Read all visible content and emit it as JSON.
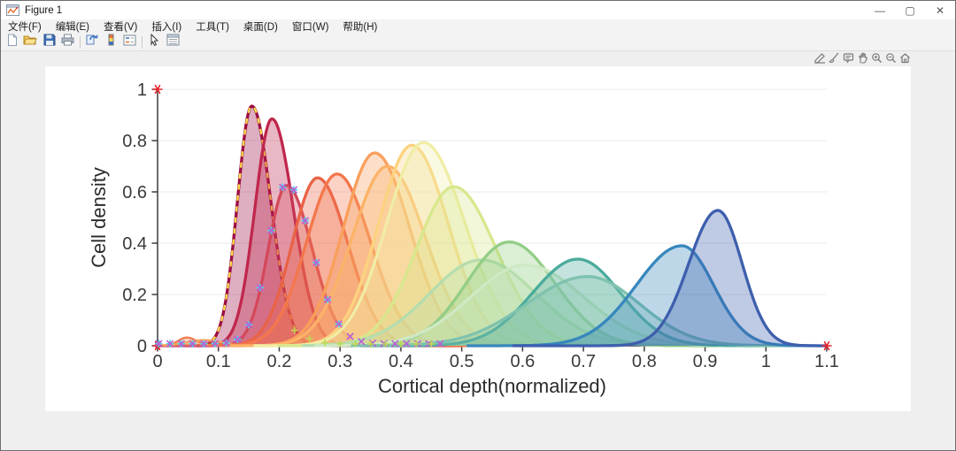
{
  "window": {
    "title": "Figure 1",
    "controls": {
      "minimize": "—",
      "maximize": "▢",
      "close": "✕"
    }
  },
  "menu_bar": {
    "items": [
      {
        "label": "文件(F)"
      },
      {
        "label": "编辑(E)"
      },
      {
        "label": "查看(V)"
      },
      {
        "label": "插入(I)"
      },
      {
        "label": "工具(T)"
      },
      {
        "label": "桌面(D)"
      },
      {
        "label": "窗口(W)"
      },
      {
        "label": "帮助(H)"
      }
    ]
  },
  "toolbar": {
    "buttons": [
      {
        "name": "new-figure-button",
        "icon": "new-document-icon"
      },
      {
        "name": "open-file-button",
        "icon": "open-folder-icon"
      },
      {
        "name": "save-figure-button",
        "icon": "save-floppy-icon"
      },
      {
        "name": "print-figure-button",
        "icon": "printer-icon"
      },
      {
        "name": "separator"
      },
      {
        "name": "link-plot-button",
        "icon": "link-plot-icon"
      },
      {
        "name": "insert-colorbar-button",
        "icon": "colorbar-icon"
      },
      {
        "name": "insert-legend-button",
        "icon": "legend-icon"
      },
      {
        "name": "separator"
      },
      {
        "name": "edit-plot-button",
        "icon": "cursor-arrow-icon"
      },
      {
        "name": "property-inspector-button",
        "icon": "property-inspector-icon"
      }
    ]
  },
  "axes_toolbar": {
    "buttons": [
      {
        "name": "export-button",
        "icon": "export-icon"
      },
      {
        "name": "brush-data-button",
        "icon": "brush-icon"
      },
      {
        "name": "datatips-button",
        "icon": "datatip-icon"
      },
      {
        "name": "pan-button",
        "icon": "pan-hand-icon"
      },
      {
        "name": "zoom-in-button",
        "icon": "zoom-in-icon"
      },
      {
        "name": "zoom-out-button",
        "icon": "zoom-out-icon"
      },
      {
        "name": "restore-view-button",
        "icon": "home-icon"
      }
    ]
  },
  "chart_data": {
    "type": "area",
    "title": "",
    "xlabel": "Cortical depth(normalized)",
    "ylabel": "Cell density",
    "xlim": [
      0,
      1.1
    ],
    "ylim": [
      0,
      1
    ],
    "xticks": [
      "0",
      "0.1",
      "0.2",
      "0.3",
      "0.4",
      "0.5",
      "0.6",
      "0.7",
      "0.8",
      "0.9",
      "1",
      "1.1"
    ],
    "xtick_values": [
      0,
      0.1,
      0.2,
      0.3,
      0.4,
      0.5,
      0.6,
      0.7,
      0.8,
      0.9,
      1,
      1.1
    ],
    "yticks": [
      "0",
      "0.2",
      "0.4",
      "0.6",
      "0.8",
      "1"
    ],
    "ytick_values": [
      0,
      0.2,
      0.4,
      0.6,
      0.8,
      1
    ],
    "grid": "horizontal",
    "legend": "none",
    "series_note": "overlapping kernel-density curves, spectral colormap, gaussian shape: peak at mu, asymmetric sigmas, drawn in list order",
    "series": [
      {
        "name": "maroon",
        "color": "#9c0d43",
        "mu": 0.155,
        "sigma_left": 0.0235,
        "sigma_right": 0.031,
        "peak": 0.935,
        "x_range": [
          0.055,
          0.32
        ],
        "overlay_dash_color": "#ffe14a"
      },
      {
        "name": "crimson",
        "color": "#c0274d",
        "mu": 0.188,
        "sigma_left": 0.028,
        "sigma_right": 0.035,
        "peak": 0.885,
        "x_range": [
          0.065,
          0.37
        ]
      },
      {
        "name": "rose",
        "color": "#d4485a",
        "mu": 0.212,
        "sigma_left": 0.03,
        "sigma_right": 0.042,
        "peak": 0.625,
        "x_range": [
          0.0,
          0.5
        ]
      },
      {
        "name": "bump-a",
        "color": "#ef7e4e",
        "mu": 0.048,
        "sigma_left": 0.014,
        "sigma_right": 0.016,
        "peak": 0.032,
        "x_range": [
          0.005,
          0.1
        ],
        "thin": true
      },
      {
        "name": "bump-b",
        "color": "#f9a45c",
        "mu": 0.075,
        "sigma_left": 0.028,
        "sigma_right": 0.03,
        "peak": 0.022,
        "x_range": [
          0.005,
          0.16
        ],
        "thin": true
      },
      {
        "name": "orange-red",
        "color": "#e96346",
        "mu": 0.263,
        "sigma_left": 0.042,
        "sigma_right": 0.05,
        "peak": 0.655,
        "x_range": [
          0.09,
          0.5
        ]
      },
      {
        "name": "orange",
        "color": "#f4774c",
        "mu": 0.295,
        "sigma_left": 0.05,
        "sigma_right": 0.055,
        "peak": 0.67,
        "x_range": [
          0.09,
          0.52
        ]
      },
      {
        "name": "light-orange",
        "color": "#f99f5b",
        "mu": 0.357,
        "sigma_left": 0.052,
        "sigma_right": 0.058,
        "peak": 0.752,
        "x_range": [
          0.12,
          0.6
        ]
      },
      {
        "name": "peach",
        "color": "#fcb268",
        "mu": 0.378,
        "sigma_left": 0.058,
        "sigma_right": 0.062,
        "peak": 0.7,
        "x_range": [
          0.12,
          0.62
        ]
      },
      {
        "name": "straw",
        "color": "#fdd27f",
        "mu": 0.418,
        "sigma_left": 0.055,
        "sigma_right": 0.06,
        "peak": 0.782,
        "x_range": [
          0.16,
          0.66
        ]
      },
      {
        "name": "pale-yellow",
        "color": "#f0eda6",
        "mu": 0.437,
        "sigma_left": 0.06,
        "sigma_right": 0.068,
        "peak": 0.793,
        "x_range": [
          0.16,
          0.7
        ]
      },
      {
        "name": "yellow-green",
        "color": "#d8e78d",
        "mu": 0.487,
        "sigma_left": 0.062,
        "sigma_right": 0.07,
        "peak": 0.62,
        "x_range": [
          0.2,
          0.76
        ]
      },
      {
        "name": "pale-green-wide",
        "color": "#b5ddae",
        "mu": 0.532,
        "sigma_left": 0.085,
        "sigma_right": 0.09,
        "peak": 0.335,
        "x_range": [
          0.24,
          0.92
        ]
      },
      {
        "name": "light-green",
        "color": "#93cd86",
        "mu": 0.578,
        "sigma_left": 0.07,
        "sigma_right": 0.075,
        "peak": 0.405,
        "x_range": [
          0.3,
          0.92
        ]
      },
      {
        "name": "mint",
        "color": "#cfe9c4",
        "mu": 0.605,
        "sigma_left": 0.09,
        "sigma_right": 0.095,
        "peak": 0.315,
        "x_range": [
          0.26,
          0.97
        ]
      },
      {
        "name": "teal",
        "color": "#4bab9d",
        "mu": 0.691,
        "sigma_left": 0.075,
        "sigma_right": 0.07,
        "peak": 0.338,
        "x_range": [
          0.34,
          1.02
        ]
      },
      {
        "name": "light-teal",
        "color": "#7fc2ae",
        "mu": 0.707,
        "sigma_left": 0.1,
        "sigma_right": 0.085,
        "peak": 0.27,
        "x_range": [
          0.32,
          1.04
        ]
      },
      {
        "name": "steel-blue",
        "color": "#3787bd",
        "mu": 0.862,
        "sigma_left": 0.075,
        "sigma_right": 0.052,
        "peak": 0.39,
        "x_range": [
          0.51,
          1.09
        ]
      },
      {
        "name": "dark-blue",
        "color": "#3d5fad",
        "mu": 0.921,
        "sigma_left": 0.048,
        "sigma_right": 0.04,
        "peak": 0.528,
        "x_range": [
          0.585,
          1.097
        ]
      }
    ],
    "marker_series": [
      {
        "name": "endpoint-asterisks",
        "glyph": "asterisk",
        "color": "#e8232a",
        "size": 5,
        "points": [
          [
            0,
            1
          ],
          [
            0,
            0
          ],
          [
            1.1,
            0
          ]
        ]
      },
      {
        "name": "origin-dot",
        "glyph": "dot",
        "color": "#e8232a",
        "size": 3.2,
        "points": [
          [
            0,
            0
          ]
        ]
      },
      {
        "name": "rose-cyan-plus",
        "glyph": "plus",
        "color": "#4fd2e6",
        "size": 3.6,
        "on_series": "rose",
        "x_start": 0.002,
        "x_end": 0.3,
        "x_step": 0.0185,
        "y_offset": 0.008
      },
      {
        "name": "rose-magenta-x",
        "glyph": "x",
        "color": "#bb5cd6",
        "size": 3.2,
        "on_series": "rose",
        "x_start": 0.002,
        "x_end": 0.47,
        "x_step": 0.0185,
        "y_offset": 0.008
      },
      {
        "name": "tail-lime-plus",
        "glyph": "plus",
        "color": "#bfd84f",
        "size": 3.2,
        "points": [
          [
            0.225,
            0.06
          ],
          [
            0.25,
            0.028
          ],
          [
            0.275,
            0.012
          ],
          [
            0.3,
            0.008
          ],
          [
            0.325,
            0.007
          ],
          [
            0.35,
            0.007
          ],
          [
            0.375,
            0.007
          ],
          [
            0.4,
            0.007
          ],
          [
            0.425,
            0.007
          ],
          [
            0.45,
            0.007
          ]
        ]
      }
    ],
    "colors": {
      "axis": "#3c3c3c",
      "grid": "#e9e9e9",
      "tick_label": "#3a3a3a",
      "axis_label": "#2b2b2b"
    }
  }
}
